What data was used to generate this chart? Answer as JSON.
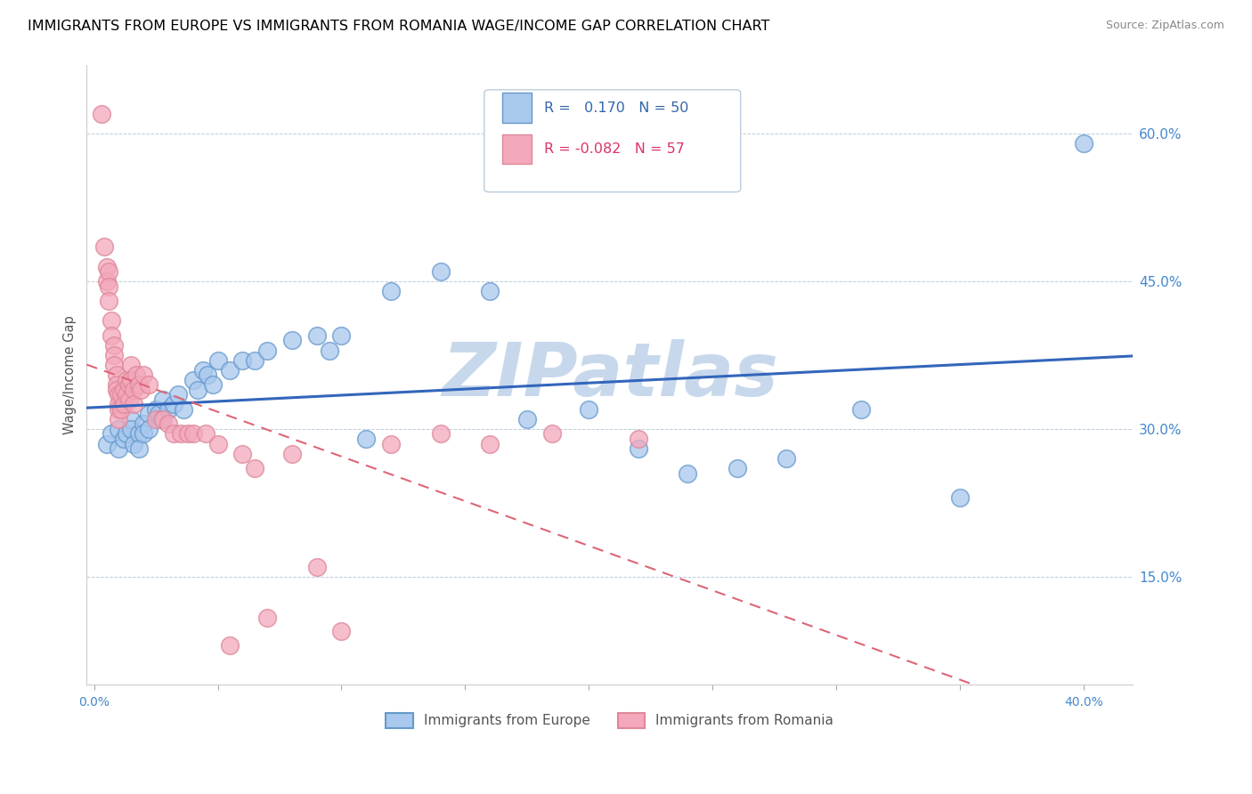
{
  "title": "IMMIGRANTS FROM EUROPE VS IMMIGRANTS FROM ROMANIA WAGE/INCOME GAP CORRELATION CHART",
  "source": "Source: ZipAtlas.com",
  "ylabel": "Wage/Income Gap",
  "y_ticks_right": [
    0.15,
    0.3,
    0.45,
    0.6
  ],
  "y_tick_labels_right": [
    "15.0%",
    "30.0%",
    "45.0%",
    "60.0%"
  ],
  "xlim": [
    -0.003,
    0.42
  ],
  "ylim": [
    0.04,
    0.67
  ],
  "legend_europe": "Immigrants from Europe",
  "legend_romania": "Immigrants from Romania",
  "R_europe": 0.17,
  "N_europe": 50,
  "R_romania": -0.082,
  "N_romania": 57,
  "color_europe": "#A8C8EE",
  "color_romania": "#F4A8BC",
  "color_europe_edge": "#6699CC",
  "color_romania_edge": "#DD8899",
  "color_europe_line": "#3366BB",
  "color_romania_line": "#DD6677",
  "watermark": "ZIPatlas",
  "watermark_color": "#C8D8EC",
  "title_fontsize": 11.5,
  "source_fontsize": 9,
  "europe_x": [
    0.005,
    0.007,
    0.01,
    0.01,
    0.012,
    0.013,
    0.015,
    0.015,
    0.016,
    0.018,
    0.018,
    0.02,
    0.02,
    0.022,
    0.022,
    0.025,
    0.026,
    0.027,
    0.028,
    0.03,
    0.032,
    0.034,
    0.036,
    0.04,
    0.042,
    0.044,
    0.046,
    0.048,
    0.05,
    0.055,
    0.06,
    0.065,
    0.07,
    0.08,
    0.09,
    0.095,
    0.1,
    0.11,
    0.12,
    0.14,
    0.16,
    0.175,
    0.2,
    0.22,
    0.24,
    0.26,
    0.28,
    0.31,
    0.35,
    0.4
  ],
  "europe_y": [
    0.285,
    0.295,
    0.3,
    0.28,
    0.29,
    0.295,
    0.31,
    0.3,
    0.285,
    0.295,
    0.28,
    0.305,
    0.295,
    0.315,
    0.3,
    0.32,
    0.315,
    0.31,
    0.33,
    0.32,
    0.325,
    0.335,
    0.32,
    0.35,
    0.34,
    0.36,
    0.355,
    0.345,
    0.37,
    0.36,
    0.37,
    0.37,
    0.38,
    0.39,
    0.395,
    0.38,
    0.395,
    0.29,
    0.44,
    0.46,
    0.44,
    0.31,
    0.32,
    0.28,
    0.255,
    0.26,
    0.27,
    0.32,
    0.23,
    0.59
  ],
  "romania_x": [
    0.003,
    0.004,
    0.005,
    0.005,
    0.006,
    0.006,
    0.006,
    0.007,
    0.007,
    0.008,
    0.008,
    0.008,
    0.009,
    0.009,
    0.009,
    0.01,
    0.01,
    0.01,
    0.01,
    0.011,
    0.011,
    0.012,
    0.012,
    0.013,
    0.013,
    0.014,
    0.014,
    0.015,
    0.015,
    0.016,
    0.016,
    0.017,
    0.018,
    0.019,
    0.02,
    0.022,
    0.025,
    0.028,
    0.03,
    0.032,
    0.035,
    0.038,
    0.04,
    0.045,
    0.05,
    0.055,
    0.06,
    0.065,
    0.07,
    0.08,
    0.09,
    0.1,
    0.12,
    0.14,
    0.16,
    0.185,
    0.22
  ],
  "romania_y": [
    0.62,
    0.485,
    0.465,
    0.45,
    0.46,
    0.445,
    0.43,
    0.41,
    0.395,
    0.385,
    0.375,
    0.365,
    0.355,
    0.345,
    0.34,
    0.335,
    0.325,
    0.32,
    0.31,
    0.335,
    0.32,
    0.34,
    0.325,
    0.35,
    0.335,
    0.345,
    0.33,
    0.365,
    0.35,
    0.34,
    0.325,
    0.355,
    0.345,
    0.34,
    0.355,
    0.345,
    0.31,
    0.31,
    0.305,
    0.295,
    0.295,
    0.295,
    0.295,
    0.295,
    0.285,
    0.08,
    0.275,
    0.26,
    0.108,
    0.275,
    0.16,
    0.095,
    0.285,
    0.295,
    0.285,
    0.295,
    0.29
  ]
}
